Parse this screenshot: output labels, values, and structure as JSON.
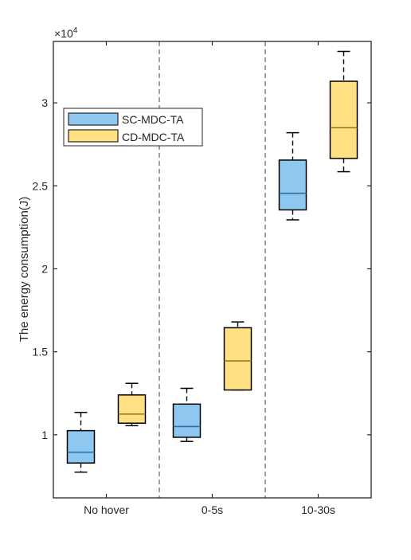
{
  "chart_data": {
    "type": "box",
    "categories": [
      "No hover",
      "0-5s",
      "10-30s"
    ],
    "ylabel": "The energy consumption(J)",
    "xlabel": "",
    "y_multiplier_label": "×10",
    "y_multiplier_exponent": "4",
    "ylim": [
      6200,
      33700
    ],
    "yticks": [
      10000,
      15000,
      20000,
      25000,
      30000
    ],
    "ytick_labels": [
      "1",
      "1.5",
      "2",
      "2.5",
      "3"
    ],
    "group_separators": "dashed",
    "legend": {
      "position": "top-left"
    },
    "series": [
      {
        "name": "SC-MDC-TA",
        "color": "#8ec8f0",
        "median_color": "#2e6fa3",
        "boxes": [
          {
            "min": 7750,
            "q1": 8300,
            "median": 8950,
            "q3": 10250,
            "max": 11350
          },
          {
            "min": 9600,
            "q1": 9850,
            "median": 10500,
            "q3": 11850,
            "max": 12800
          },
          {
            "min": 22950,
            "q1": 23550,
            "median": 24550,
            "q3": 26550,
            "max": 28200
          }
        ]
      },
      {
        "name": "CD-MDC-TA",
        "color": "#ffe083",
        "median_color": "#a07a10",
        "boxes": [
          {
            "min": 10550,
            "q1": 10700,
            "median": 11250,
            "q3": 12400,
            "max": 13100
          },
          {
            "min": 12700,
            "q1": 12700,
            "median": 14450,
            "q3": 16450,
            "max": 16800
          },
          {
            "min": 25850,
            "q1": 26650,
            "median": 28500,
            "q3": 31300,
            "max": 33100
          }
        ]
      }
    ]
  }
}
